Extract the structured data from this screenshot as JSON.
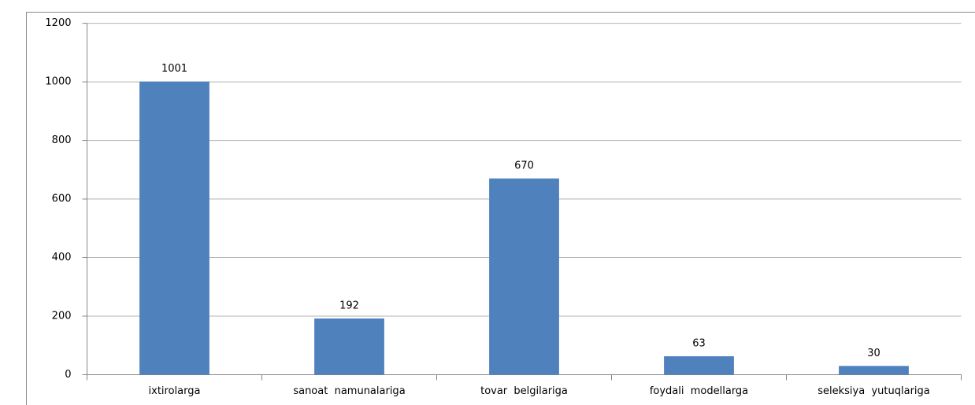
{
  "chart_data": {
    "type": "bar",
    "categories": [
      "ixtirolarga",
      "sanoat  namunalariga",
      "tovar  belgilariga",
      "foydali  modellarga",
      "seleksiya  yutuqlariga"
    ],
    "values": [
      1001,
      192,
      670,
      63,
      30
    ],
    "color": "#4f81bd",
    "ylim": [
      0,
      1200
    ],
    "yticks": [
      0,
      200,
      400,
      600,
      800,
      1000,
      1200
    ],
    "grid": true
  }
}
